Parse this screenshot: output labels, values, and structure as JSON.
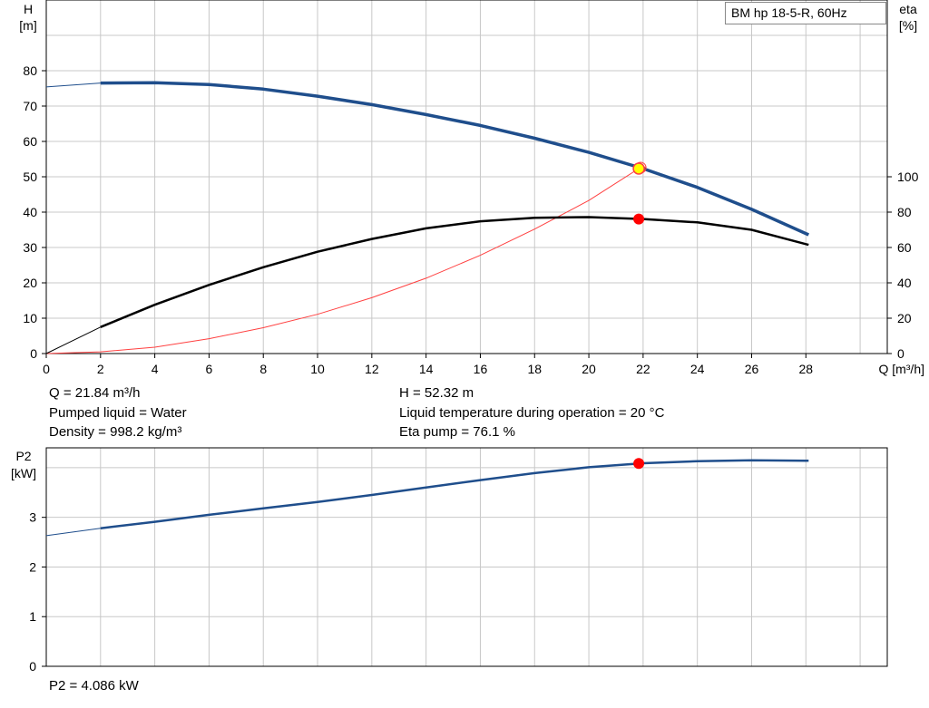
{
  "title": "BM hp  18-5-R, 60Hz",
  "info": {
    "q": "Q = 21.84 m³/h",
    "pumped_liquid": "Pumped liquid = Water",
    "density": "Density = 998.2 kg/m³",
    "h": "H = 52.32 m",
    "liquid_temp": "Liquid temperature during operation = 20 °C",
    "eta_pump": "Eta pump = 76.1 %",
    "p2": "P2 = 4.086 kW"
  },
  "colors": {
    "head_curve": "#1f4e8c",
    "eta_curve": "#000000",
    "system_curve": "#ff4040",
    "op_point": "#ff0000",
    "op_point_head": "#ffff00",
    "grid": "#c8c8c8"
  },
  "chart_data": [
    {
      "type": "line",
      "name": "head_eta",
      "xlabel": "Q [m³/h]",
      "ylabel_left": [
        "H",
        "[m]"
      ],
      "ylabel_right": [
        "eta",
        "[%]"
      ],
      "xlim": [
        0,
        31
      ],
      "ylim_left": [
        0,
        100
      ],
      "ylim_right": [
        0,
        100
      ],
      "xticks": [
        0,
        2,
        4,
        6,
        8,
        10,
        12,
        14,
        16,
        18,
        20,
        22,
        24,
        26,
        28
      ],
      "yticks_left": [
        0,
        10,
        20,
        30,
        40,
        50,
        60,
        70,
        80
      ],
      "yticks_right": [
        0,
        20,
        40,
        60,
        80,
        100
      ],
      "right_axis_zero_at_left_value": 0,
      "right_axis_100_at_left_value": 50,
      "grid": true,
      "series": [
        {
          "key": "head",
          "axis": "left",
          "x": [
            0,
            2,
            4,
            6,
            8,
            10,
            12,
            14,
            16,
            18,
            20,
            22,
            24,
            26,
            28.1
          ],
          "y": [
            75.4,
            76.5,
            76.6,
            76.1,
            74.8,
            72.8,
            70.4,
            67.6,
            64.5,
            60.9,
            56.9,
            52.3,
            47.0,
            40.8,
            33.6
          ],
          "extrapolated_below_x": 2
        },
        {
          "key": "eta",
          "axis": "right",
          "x": [
            0,
            2,
            4,
            6,
            8,
            10,
            12,
            14,
            16,
            18,
            20,
            22,
            24,
            26,
            28.1
          ],
          "y": [
            0,
            15,
            27.6,
            38.8,
            48.8,
            57.6,
            64.8,
            70.8,
            74.8,
            76.8,
            77.2,
            76.1,
            74.2,
            70.0,
            61.5
          ],
          "extrapolated_below_x": 2
        },
        {
          "key": "system",
          "axis": "left",
          "x": [
            0,
            2,
            4,
            6,
            8,
            10,
            12,
            14,
            16,
            18,
            20,
            21.84,
            22.1
          ],
          "y": [
            0,
            0.5,
            1.8,
            4.2,
            7.3,
            11.1,
            15.8,
            21.3,
            27.8,
            35.2,
            43.3,
            52.3,
            52.8
          ]
        }
      ],
      "operating_point": {
        "q": 21.84,
        "h": 52.32,
        "eta": 76.1
      }
    },
    {
      "type": "line",
      "name": "power",
      "ylabel": [
        "P2",
        "[kW]"
      ],
      "xlim": [
        0,
        31
      ],
      "ylim": [
        0,
        4.4
      ],
      "xticks": [
        0,
        2,
        4,
        6,
        8,
        10,
        12,
        14,
        16,
        18,
        20,
        22,
        24,
        26,
        28
      ],
      "yticks": [
        0,
        1,
        2,
        3
      ],
      "y_grid_lines": [
        0,
        1,
        2,
        3,
        4
      ],
      "grid": true,
      "series": [
        {
          "key": "p2",
          "x": [
            0,
            2,
            4,
            6,
            8,
            10,
            12,
            14,
            16,
            18,
            20,
            22,
            24,
            26,
            28.1
          ],
          "y": [
            2.63,
            2.78,
            2.91,
            3.05,
            3.18,
            3.31,
            3.45,
            3.6,
            3.75,
            3.89,
            4.01,
            4.09,
            4.13,
            4.15,
            4.14
          ],
          "extrapolated_below_x": 2
        }
      ],
      "operating_point": {
        "q": 21.84,
        "p2": 4.086
      }
    }
  ]
}
